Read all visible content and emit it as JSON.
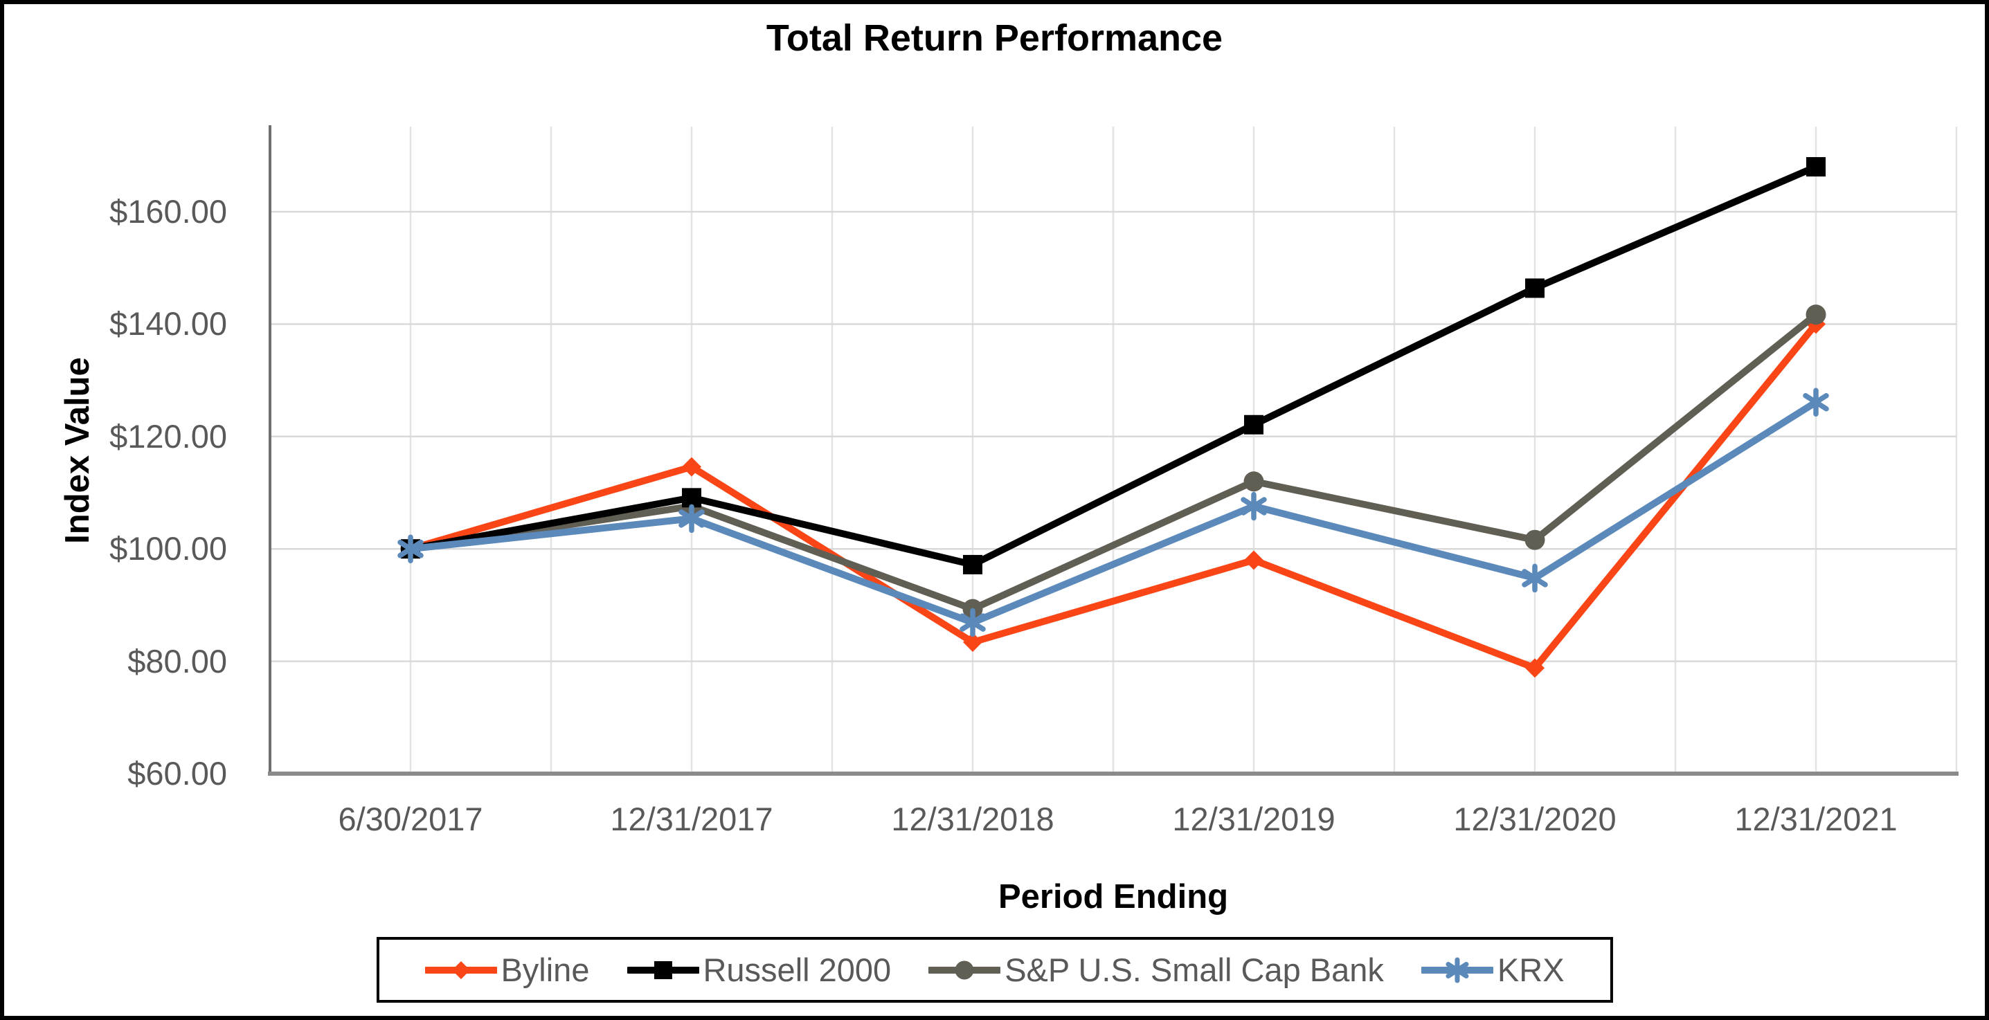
{
  "chart_data": {
    "type": "line",
    "title": "Total Return Performance",
    "xlabel": "Period Ending",
    "ylabel": "Index Value",
    "categories": [
      "6/30/2017",
      "12/31/2017",
      "12/31/2018",
      "12/31/2019",
      "12/31/2020",
      "12/31/2021"
    ],
    "series": [
      {
        "name": "Byline",
        "color": "#FA4616",
        "marker": "diamond",
        "values": [
          100.0,
          114.6,
          83.4,
          98.0,
          78.8,
          140.0
        ]
      },
      {
        "name": "Russell 2000",
        "color": "#000000",
        "marker": "square",
        "values": [
          100.0,
          109.1,
          97.2,
          122.1,
          146.4,
          168.0
        ]
      },
      {
        "name": "S&P U.S. Small Cap Bank",
        "color": "#615E54",
        "marker": "circle",
        "values": [
          100.0,
          107.6,
          89.3,
          112.0,
          101.6,
          141.7
        ]
      },
      {
        "name": "KRX",
        "color": "#5B89BA",
        "marker": "asterisk",
        "values": [
          100.0,
          105.4,
          86.9,
          107.6,
          94.8,
          126.1
        ]
      }
    ],
    "ylim": [
      60,
      175.1
    ],
    "y_ticks": [
      {
        "value": 160,
        "label": "$160.00"
      },
      {
        "value": 140,
        "label": "$140.00"
      },
      {
        "value": 120,
        "label": "$120.00"
      },
      {
        "value": 100,
        "label": "$100.00"
      },
      {
        "value": 80,
        "label": "$80.00"
      },
      {
        "value": 60,
        "label": "$60.00"
      }
    ],
    "grid": true,
    "legend_position": "bottom"
  },
  "colors": {
    "grid_horizontal": "#D9D9D9",
    "grid_vertical": "#E3E3E3",
    "axis_left": "#6F6F6F",
    "axis_bottom": "#8A8A8A",
    "tick_text": "#595959"
  }
}
